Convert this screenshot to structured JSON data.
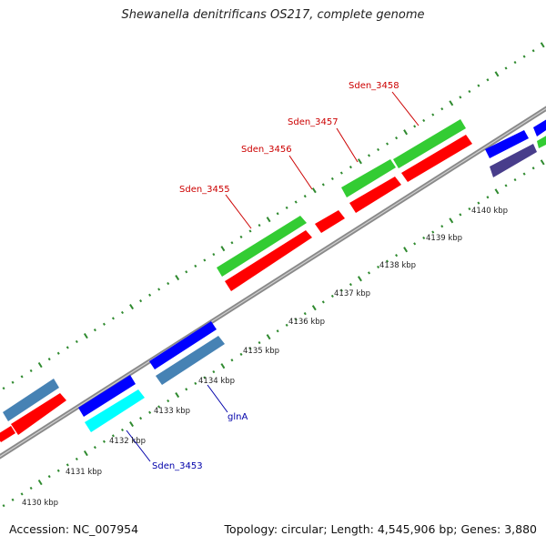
{
  "title": "Shewanella denitrificans OS217, complete genome",
  "footer": {
    "accession_label": "Accession:",
    "accession": "NC_007954",
    "topology_label": "Topology:",
    "topology": "circular",
    "length_label": "Length:",
    "length": "4,545,906 bp",
    "genes_label": "Genes:",
    "genes": "3,880"
  },
  "colors": {
    "backbone": "#8a8a8a",
    "tick": "#2f8a2f",
    "label_red": "#cc0000",
    "label_blue": "#0000aa",
    "kbp_text": "#222222"
  },
  "scale": {
    "labels": [
      "4130 kbp",
      "4131 kbp",
      "4132 kbp",
      "4133 kbp",
      "4134 kbp",
      "4135 kbp",
      "4136 kbp",
      "4137 kbp",
      "4138 kbp",
      "4139 kbp",
      "4140 kbp"
    ]
  },
  "gene_labels": [
    {
      "name": "Sden_3458",
      "color": "red"
    },
    {
      "name": "Sden_3457",
      "color": "red"
    },
    {
      "name": "Sden_3456",
      "color": "red"
    },
    {
      "name": "Sden_3455",
      "color": "red"
    },
    {
      "name": "glnA",
      "color": "blue"
    },
    {
      "name": "Sden_3453",
      "color": "blue"
    }
  ]
}
